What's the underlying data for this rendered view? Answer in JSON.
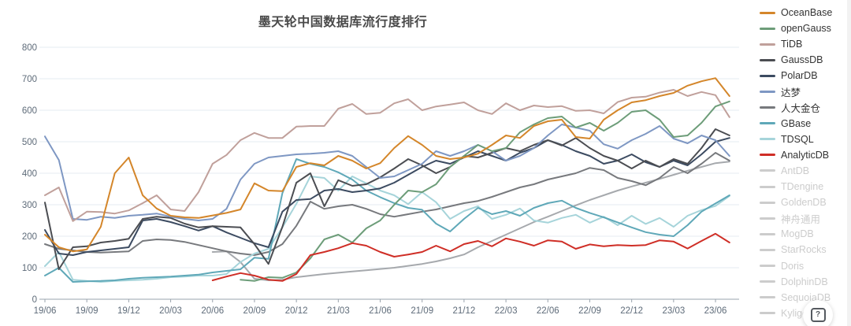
{
  "page": {
    "background": "#ffffff"
  },
  "chart_data": {
    "type": "line",
    "title": "墨天轮中国数据库流行度排行",
    "title_color": "#4a4a4a",
    "xlabel": "",
    "ylabel": "",
    "y_ticks": [
      0,
      100,
      200,
      300,
      400,
      500,
      600,
      700,
      800
    ],
    "ylim": [
      0,
      800
    ],
    "grid": "horizontal",
    "legend_position": "right",
    "x_tick_labels": [
      "19/06",
      "19/09",
      "19/12",
      "20/03",
      "20/06",
      "20/09",
      "20/12",
      "21/03",
      "21/06",
      "21/09",
      "21/12",
      "22/03",
      "22/06",
      "22/09",
      "22/12",
      "23/03",
      "23/06"
    ],
    "x": [
      "19/06",
      "19/07",
      "19/08",
      "19/09",
      "19/10",
      "19/11",
      "19/12",
      "20/01",
      "20/02",
      "20/03",
      "20/04",
      "20/05",
      "20/06",
      "20/07",
      "20/08",
      "20/09",
      "20/10",
      "20/11",
      "20/12",
      "21/01",
      "21/02",
      "21/03",
      "21/04",
      "21/05",
      "21/06",
      "21/07",
      "21/08",
      "21/09",
      "21/10",
      "21/11",
      "21/12",
      "22/01",
      "22/02",
      "22/03",
      "22/04",
      "22/05",
      "22/06",
      "22/07",
      "22/08",
      "22/09",
      "22/10",
      "22/11",
      "22/12",
      "23/01",
      "23/02",
      "23/03",
      "23/04",
      "23/05",
      "23/06",
      "23/07"
    ],
    "series": [
      {
        "name": "MogDB",
        "color": "#a6a9ad",
        "values": [
          null,
          null,
          null,
          null,
          null,
          null,
          null,
          null,
          null,
          null,
          null,
          null,
          150,
          152,
          118,
          65,
          60,
          62,
          70,
          75,
          80,
          84,
          88,
          92,
          96,
          100,
          106,
          112,
          120,
          130,
          142,
          165,
          185,
          205,
          225,
          245,
          262,
          280,
          298,
          315,
          330,
          345,
          358,
          370,
          382,
          395,
          408,
          420,
          432,
          437
        ]
      },
      {
        "name": "人大金仓",
        "color": "#77797d",
        "values": [
          175,
          160,
          155,
          150,
          148,
          150,
          152,
          185,
          190,
          188,
          182,
          172,
          162,
          152,
          145,
          140,
          150,
          175,
          233,
          310,
          287,
          295,
          300,
          287,
          270,
          262,
          270,
          278,
          285,
          295,
          305,
          312,
          325,
          340,
          355,
          365,
          380,
          390,
          400,
          417,
          410,
          385,
          375,
          362,
          385,
          420,
          400,
          430,
          465,
          440
        ]
      },
      {
        "name": "TDSQL",
        "color": "#a6d4da",
        "values": [
          105,
          150,
          62,
          58,
          55,
          58,
          60,
          62,
          65,
          70,
          72,
          75,
          75,
          80,
          118,
          145,
          160,
          228,
          303,
          390,
          385,
          345,
          390,
          368,
          345,
          330,
          302,
          340,
          308,
          255,
          280,
          295,
          255,
          268,
          288,
          250,
          243,
          258,
          268,
          243,
          262,
          235,
          265,
          239,
          258,
          230,
          265,
          283,
          296,
          328
        ]
      },
      {
        "name": "GBase",
        "color": "#5fa8b8",
        "values": [
          75,
          100,
          55,
          57,
          58,
          60,
          65,
          68,
          70,
          72,
          75,
          78,
          85,
          90,
          95,
          132,
          128,
          337,
          445,
          430,
          420,
          403,
          380,
          345,
          324,
          305,
          290,
          284,
          240,
          215,
          255,
          290,
          270,
          280,
          265,
          290,
          305,
          313,
          290,
          274,
          260,
          244,
          228,
          213,
          205,
          200,
          235,
          278,
          304,
          330
        ]
      },
      {
        "name": "PolarDB",
        "color": "#3c4b61",
        "values": [
          220,
          145,
          140,
          150,
          155,
          160,
          165,
          250,
          255,
          245,
          232,
          218,
          232,
          212,
          195,
          178,
          165,
          278,
          315,
          318,
          345,
          350,
          340,
          345,
          352,
          370,
          395,
          420,
          440,
          430,
          450,
          470,
          455,
          440,
          465,
          480,
          505,
          490,
          470,
          455,
          430,
          440,
          460,
          435,
          420,
          440,
          425,
          460,
          500,
          512
        ]
      },
      {
        "name": "GaussDB",
        "color": "#4b4d52",
        "values": [
          307,
          95,
          165,
          168,
          180,
          185,
          192,
          255,
          262,
          258,
          240,
          228,
          232,
          230,
          228,
          175,
          112,
          230,
          370,
          400,
          295,
          378,
          360,
          365,
          387,
          415,
          445,
          425,
          400,
          420,
          455,
          450,
          465,
          480,
          470,
          490,
          505,
          488,
          512,
          480,
          455,
          440,
          415,
          440,
          420,
          445,
          430,
          480,
          540,
          520
        ]
      },
      {
        "name": "达梦",
        "color": "#7e97c3",
        "values": [
          517,
          442,
          255,
          252,
          262,
          258,
          265,
          268,
          272,
          262,
          255,
          250,
          255,
          287,
          380,
          430,
          450,
          455,
          460,
          462,
          465,
          470,
          455,
          420,
          385,
          390,
          410,
          430,
          470,
          455,
          470,
          490,
          470,
          440,
          455,
          480,
          520,
          555,
          545,
          535,
          492,
          478,
          505,
          525,
          550,
          510,
          495,
          520,
          505,
          455
        ]
      },
      {
        "name": "TiDB",
        "color": "#c0a09b",
        "values": [
          330,
          355,
          248,
          278,
          277,
          272,
          282,
          305,
          330,
          285,
          280,
          340,
          430,
          458,
          505,
          528,
          512,
          512,
          548,
          550,
          550,
          605,
          620,
          588,
          592,
          622,
          635,
          600,
          612,
          618,
          625,
          600,
          588,
          622,
          600,
          615,
          610,
          613,
          598,
          600,
          590,
          626,
          640,
          643,
          656,
          665,
          645,
          658,
          648,
          578
        ]
      },
      {
        "name": "openGauss",
        "color": "#6d9d79",
        "values": [
          null,
          null,
          null,
          null,
          null,
          null,
          null,
          null,
          null,
          null,
          null,
          null,
          null,
          null,
          62,
          58,
          70,
          68,
          85,
          130,
          190,
          205,
          180,
          225,
          250,
          300,
          345,
          340,
          365,
          420,
          455,
          490,
          470,
          480,
          530,
          555,
          575,
          580,
          545,
          560,
          535,
          560,
          595,
          600,
          570,
          515,
          520,
          560,
          612,
          628
        ]
      },
      {
        "name": "OceanBase",
        "color": "#d4862a",
        "values": [
          205,
          165,
          152,
          158,
          230,
          400,
          450,
          330,
          288,
          265,
          260,
          258,
          266,
          274,
          285,
          368,
          345,
          343,
          420,
          432,
          425,
          455,
          440,
          415,
          432,
          480,
          518,
          490,
          455,
          445,
          450,
          462,
          490,
          520,
          512,
          550,
          565,
          570,
          515,
          510,
          570,
          600,
          625,
          632,
          645,
          655,
          678,
          692,
          702,
          645
        ]
      },
      {
        "name": "AnalyticDB",
        "color": "#cf2e26",
        "values": [
          null,
          null,
          null,
          null,
          null,
          null,
          null,
          null,
          null,
          null,
          null,
          null,
          60,
          72,
          83,
          75,
          62,
          58,
          80,
          140,
          150,
          162,
          178,
          170,
          150,
          135,
          142,
          150,
          170,
          152,
          175,
          185,
          168,
          193,
          183,
          170,
          187,
          183,
          160,
          174,
          168,
          172,
          170,
          172,
          187,
          183,
          161,
          185,
          208,
          180
        ]
      }
    ]
  },
  "legend": {
    "items": [
      {
        "label": "OceanBase",
        "color": "#d4862a",
        "enabled": true
      },
      {
        "label": "openGauss",
        "color": "#6d9d79",
        "enabled": true
      },
      {
        "label": "TiDB",
        "color": "#c0a09b",
        "enabled": true
      },
      {
        "label": "GaussDB",
        "color": "#4b4d52",
        "enabled": true
      },
      {
        "label": "PolarDB",
        "color": "#3c4b61",
        "enabled": true
      },
      {
        "label": "达梦",
        "color": "#7e97c3",
        "enabled": true
      },
      {
        "label": "人大金仓",
        "color": "#77797d",
        "enabled": true
      },
      {
        "label": "GBase",
        "color": "#5fa8b8",
        "enabled": true
      },
      {
        "label": "TDSQL",
        "color": "#a6d4da",
        "enabled": true
      },
      {
        "label": "AnalyticDB",
        "color": "#cf2e26",
        "enabled": true
      },
      {
        "label": "AntDB",
        "color": "#cccccc",
        "enabled": false
      },
      {
        "label": "TDengine",
        "color": "#cccccc",
        "enabled": false
      },
      {
        "label": "GoldenDB",
        "color": "#cccccc",
        "enabled": false
      },
      {
        "label": "神舟通用",
        "color": "#cccccc",
        "enabled": false
      },
      {
        "label": "MogDB",
        "color": "#cccccc",
        "enabled": false
      },
      {
        "label": "StarRocks",
        "color": "#cccccc",
        "enabled": false
      },
      {
        "label": "Doris",
        "color": "#cccccc",
        "enabled": false
      },
      {
        "label": "DolphinDB",
        "color": "#cccccc",
        "enabled": false
      },
      {
        "label": "SequoiaDB",
        "color": "#cccccc",
        "enabled": false
      },
      {
        "label": "Kyligence",
        "color": "#cccccc",
        "enabled": false
      }
    ]
  },
  "help_button": {
    "icon": "question-mark-dialog",
    "glyph": "?"
  },
  "axis_style": {
    "grid_color": "#e4ebf2",
    "axis_color": "#9aa3ad",
    "label_color": "#5e6b79"
  }
}
